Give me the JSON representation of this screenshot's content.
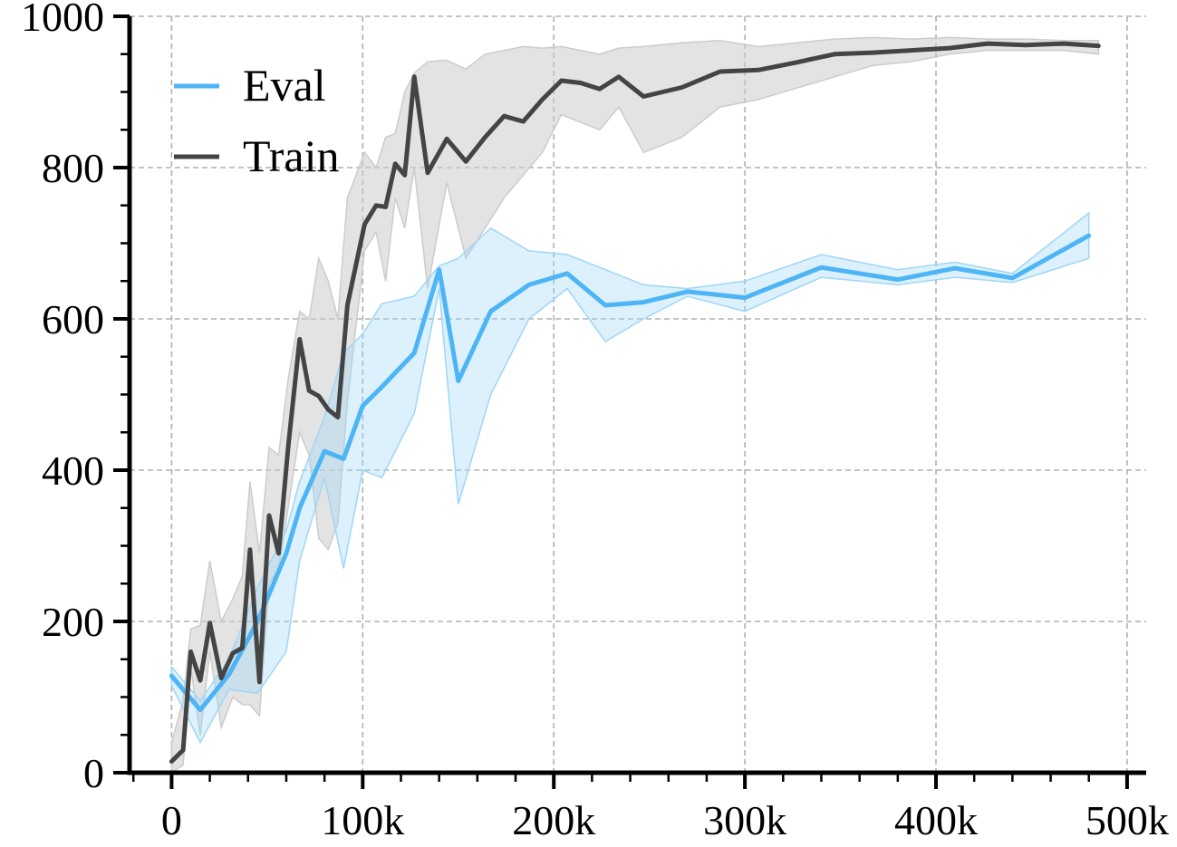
{
  "chart_data": {
    "type": "line",
    "title": "",
    "xlabel": "",
    "ylabel": "",
    "xlim": [
      -22000,
      510000
    ],
    "ylim": [
      0,
      1000
    ],
    "x_ticks": [
      0,
      100000,
      200000,
      300000,
      400000,
      500000
    ],
    "x_tick_labels": [
      "0",
      "100k",
      "200k",
      "300k",
      "400k",
      "500k"
    ],
    "y_ticks": [
      0,
      200,
      400,
      600,
      800,
      1000
    ],
    "y_tick_labels": [
      "0",
      "200",
      "400",
      "600",
      "800",
      "1000"
    ],
    "grid": true,
    "legend_position": "top-left",
    "series": [
      {
        "name": "Eval",
        "color": "#4db5f5",
        "band_color": "#9ed6f7",
        "x": [
          0,
          15000,
          30000,
          45000,
          60000,
          67000,
          80000,
          90000,
          100000,
          110000,
          127000,
          140000,
          150000,
          167000,
          187000,
          207000,
          227000,
          247000,
          270000,
          300000,
          340000,
          380000,
          410000,
          440000,
          480000
        ],
        "values": [
          128,
          83,
          130,
          200,
          290,
          350,
          425,
          415,
          485,
          510,
          555,
          665,
          518,
          610,
          645,
          660,
          618,
          622,
          636,
          628,
          668,
          652,
          667,
          654,
          710
        ],
        "upper": [
          140,
          95,
          150,
          245,
          320,
          385,
          470,
          555,
          580,
          620,
          630,
          670,
          680,
          720,
          690,
          685,
          665,
          645,
          640,
          650,
          685,
          665,
          675,
          660,
          740
        ],
        "lower": [
          115,
          40,
          110,
          105,
          160,
          280,
          390,
          270,
          400,
          390,
          475,
          640,
          355,
          500,
          600,
          640,
          570,
          600,
          630,
          610,
          655,
          645,
          655,
          648,
          680
        ]
      },
      {
        "name": "Train",
        "color": "#444444",
        "band_color": "#cccccc",
        "x": [
          0,
          6000,
          10000,
          15000,
          20000,
          26000,
          32000,
          37000,
          41000,
          46000,
          51000,
          56000,
          61000,
          67000,
          72000,
          77000,
          82000,
          87000,
          92000,
          101000,
          107000,
          112000,
          117000,
          122000,
          127000,
          134000,
          144000,
          154000,
          164000,
          174000,
          184000,
          194000,
          204000,
          214000,
          224000,
          234000,
          247000,
          267000,
          287000,
          307000,
          327000,
          347000,
          367000,
          387000,
          407000,
          427000,
          447000,
          467000,
          485000
        ],
        "values": [
          15,
          30,
          160,
          122,
          198,
          125,
          158,
          165,
          295,
          120,
          340,
          290,
          430,
          573,
          505,
          498,
          480,
          470,
          618,
          725,
          750,
          748,
          805,
          790,
          920,
          793,
          838,
          808,
          840,
          868,
          861,
          890,
          915,
          912,
          904,
          920,
          894,
          906,
          927,
          929,
          939,
          950,
          952,
          955,
          958,
          964,
          962,
          964,
          961
        ],
        "upper": [
          40,
          95,
          190,
          195,
          280,
          200,
          230,
          260,
          385,
          290,
          430,
          420,
          520,
          610,
          600,
          680,
          650,
          600,
          760,
          820,
          800,
          840,
          845,
          900,
          925,
          940,
          942,
          930,
          950,
          955,
          960,
          958,
          960,
          955,
          950,
          958,
          960,
          965,
          968,
          960,
          965,
          970,
          972,
          970,
          972,
          970,
          970,
          968,
          968
        ],
        "lower": [
          0,
          10,
          140,
          50,
          160,
          60,
          100,
          90,
          90,
          75,
          250,
          270,
          350,
          450,
          420,
          310,
          295,
          330,
          490,
          690,
          715,
          650,
          760,
          720,
          800,
          640,
          780,
          680,
          720,
          760,
          790,
          820,
          870,
          860,
          850,
          880,
          820,
          840,
          880,
          890,
          905,
          920,
          935,
          940,
          950,
          955,
          955,
          955,
          950
        ]
      }
    ]
  }
}
